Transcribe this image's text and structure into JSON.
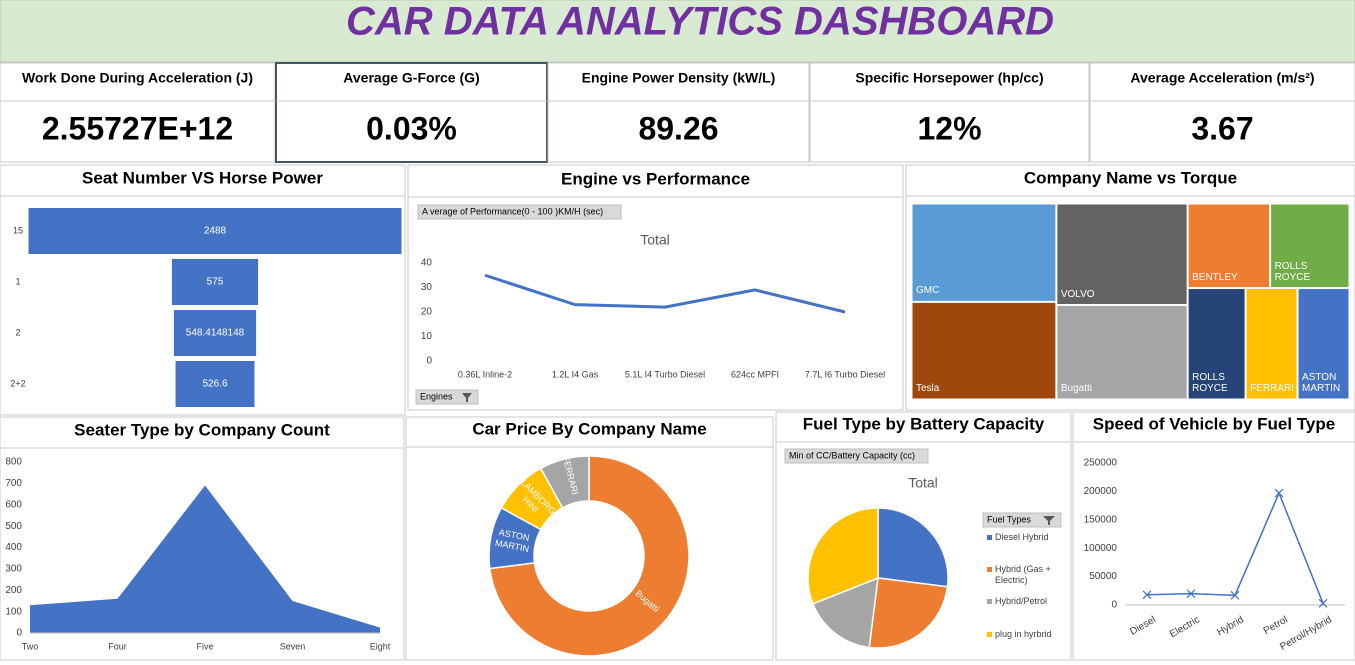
{
  "title": "CAR DATA ANALYTICS DASHBOARD",
  "kpis": [
    {
      "label": "Work Done During Acceleration (J)",
      "value": "2.55727E+12"
    },
    {
      "label": "Average G-Force (G)",
      "value": "0.03%"
    },
    {
      "label": "Engine Power Density (kW/L)",
      "value": "89.26"
    },
    {
      "label": "Specific Horsepower (hp/cc)",
      "value": "12%"
    },
    {
      "label": "Average Acceleration (m/s²)",
      "value": "3.67"
    }
  ],
  "chart_data": [
    {
      "type": "funnel",
      "title": "Seat Number VS Horse Power",
      "categories": [
        "15",
        "1",
        "2",
        "2+2"
      ],
      "values": [
        2488,
        575,
        548.4148148,
        526.6
      ],
      "color": "#4472c4"
    },
    {
      "type": "line",
      "title": "Engine vs Performance",
      "subtitle": "Total",
      "value_field": "A verage of Performance(0 - 100 )KM/H (sec)",
      "filter_field": "Engines",
      "categories": [
        "0.36L Inline-2",
        "1.2L I4 Gas",
        "5.1L I4 Turbo Diesel",
        "624cc MPFI",
        "7.7L I6 Turbo Diesel"
      ],
      "values": [
        35,
        23,
        22,
        29,
        20
      ],
      "color": "#4472c4",
      "ylim": [
        0,
        40
      ],
      "yticks": [
        0,
        10,
        20,
        30,
        40
      ],
      "grid": false
    },
    {
      "type": "treemap",
      "title": "Company Name vs Torque",
      "categories": [
        "GMC",
        "VOLVO",
        "BENTLEY",
        "ROLLS ROYCE",
        "Tesla",
        "Bugatti",
        "ROLLS ROYCE",
        "FERRARI",
        "ASTON MARTIN"
      ],
      "values": [
        1390,
        1300,
        680,
        655,
        1380,
        1210,
        630,
        565,
        565
      ],
      "colors": [
        "#5b9bd5",
        "#636363",
        "#ed7d31",
        "#70ad47",
        "#9e480e",
        "#a5a5a5",
        "#264478",
        "#ffc000",
        "#4472c4"
      ]
    },
    {
      "type": "area",
      "title": "Seater Type by Company Count",
      "categories": [
        "Two",
        "Four",
        "Five",
        "Seven",
        "Eight"
      ],
      "values": [
        130,
        160,
        690,
        150,
        25
      ],
      "color": "#4472c4",
      "ylim": [
        0,
        800
      ],
      "yticks": [
        0,
        100,
        200,
        300,
        400,
        500,
        600,
        700,
        800
      ],
      "grid": false
    },
    {
      "type": "donut",
      "title": "Car Price By Company Name",
      "categories": [
        "Bugatti",
        "ASTON MARTIN",
        "LAMBORG HINI",
        "FERRARI"
      ],
      "values": [
        73,
        10,
        9,
        8
      ],
      "colors": [
        "#ed7d31",
        "#4472c4",
        "#ffc000",
        "#a5a5a5"
      ]
    },
    {
      "type": "pie",
      "title": "Fuel Type by Battery Capacity",
      "subtitle": "Total",
      "value_field": "Min of CC/Battery Capacity (cc)",
      "legend_title": "Fuel Types",
      "categories": [
        "Diesel Hybrid",
        "Hybrid (Gas + Electric)",
        "Hybrid/Petrol",
        "plug in hyrbrid"
      ],
      "values": [
        27,
        25,
        17,
        31
      ],
      "colors": [
        "#4472c4",
        "#ed7d31",
        "#a5a5a5",
        "#ffc000"
      ]
    },
    {
      "type": "line",
      "title": "Speed of Vehicle by Fuel Type",
      "categories": [
        "Diesel",
        "Electric",
        "Hybrid",
        "Petrol",
        "Petrol/Hybrid"
      ],
      "values": [
        18000,
        20000,
        17000,
        197000,
        3000
      ],
      "color": "#4472c4",
      "marker": "x",
      "ylim": [
        0,
        250000
      ],
      "yticks": [
        0,
        50000,
        100000,
        150000,
        200000,
        250000
      ],
      "grid": false
    }
  ]
}
